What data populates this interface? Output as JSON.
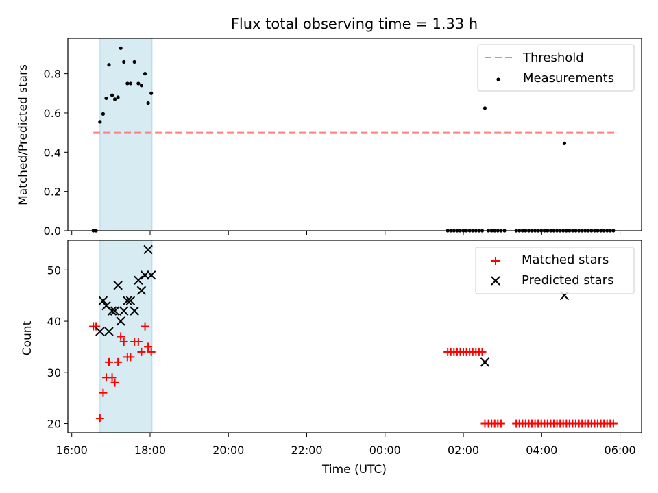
{
  "chart_data": {
    "title": "Flux total observing time = 1.33 h",
    "xlabel": "Time (UTC)",
    "x_tick_labels": [
      "16:00",
      "18:00",
      "20:00",
      "22:00",
      "00:00",
      "02:00",
      "04:00",
      "06:00"
    ],
    "x_range_hours": [
      15.9,
      30.55
    ],
    "x_ticks_hours": [
      16,
      18,
      20,
      22,
      24,
      26,
      28,
      30
    ],
    "shaded_span_hours": [
      16.72,
      18.05
    ],
    "span_color": "#add8e6",
    "panels": [
      {
        "type": "scatter",
        "ylabel": "Matched/Predicted stars",
        "ylim": [
          0,
          0.98
        ],
        "y_ticks": [
          0.0,
          0.2,
          0.4,
          0.6,
          0.8
        ],
        "y_tick_labels": [
          "0.0",
          "0.2",
          "0.4",
          "0.6",
          "0.8"
        ],
        "threshold": {
          "name": "Threshold",
          "value": 0.5,
          "x_range": [
            16.55,
            29.85
          ],
          "color": "#ff7f7f"
        },
        "series": [
          {
            "name": "Measurements",
            "marker": "dot",
            "color": "#000000",
            "x": [
              16.55,
              16.62,
              16.72,
              16.8,
              16.88,
              16.95,
              17.03,
              17.1,
              17.18,
              17.25,
              17.33,
              17.42,
              17.5,
              17.6,
              17.7,
              17.78,
              17.87,
              17.95,
              18.03,
              25.6,
              25.68,
              25.76,
              25.84,
              25.92,
              26.0,
              26.08,
              26.16,
              26.24,
              26.32,
              26.4,
              26.48,
              26.55,
              26.64,
              26.72,
              26.8,
              26.88,
              26.96,
              27.05,
              27.35,
              27.43,
              27.51,
              27.59,
              27.67,
              27.75,
              27.83,
              27.91,
              27.99,
              28.07,
              28.15,
              28.23,
              28.31,
              28.39,
              28.47,
              28.55,
              28.58,
              28.63,
              28.71,
              28.79,
              28.87,
              28.95,
              29.03,
              29.11,
              29.19,
              29.27,
              29.35,
              29.43,
              29.51,
              29.59,
              29.67,
              29.75,
              29.83
            ],
            "y": [
              0.0,
              0.0,
              0.555,
              0.595,
              0.675,
              0.845,
              0.69,
              0.67,
              0.68,
              0.93,
              0.86,
              0.75,
              0.75,
              0.86,
              0.75,
              0.74,
              0.8,
              0.65,
              0.7,
              0.0,
              0.0,
              0.0,
              0.0,
              0.0,
              0.0,
              0.0,
              0.0,
              0.0,
              0.0,
              0.0,
              0.0,
              0.625,
              0.0,
              0.0,
              0.0,
              0.0,
              0.0,
              0.0,
              0.0,
              0.0,
              0.0,
              0.0,
              0.0,
              0.0,
              0.0,
              0.0,
              0.0,
              0.0,
              0.0,
              0.0,
              0.0,
              0.0,
              0.0,
              0.0,
              0.445,
              0.0,
              0.0,
              0.0,
              0.0,
              0.0,
              0.0,
              0.0,
              0.0,
              0.0,
              0.0,
              0.0,
              0.0,
              0.0,
              0.0,
              0.0,
              0.0
            ]
          }
        ],
        "legend": {
          "position": "top-right",
          "entries": [
            "Threshold",
            "Measurements"
          ]
        }
      },
      {
        "type": "scatter",
        "ylabel": "Count",
        "ylim": [
          18.2,
          55.8
        ],
        "y_ticks": [
          20,
          30,
          40,
          50
        ],
        "y_tick_labels": [
          "20",
          "30",
          "40",
          "50"
        ],
        "series": [
          {
            "name": "Matched stars",
            "marker": "plus",
            "color": "#ff0000",
            "x": [
              16.55,
              16.62,
              16.72,
              16.8,
              16.88,
              16.95,
              17.03,
              17.1,
              17.18,
              17.25,
              17.33,
              17.42,
              17.5,
              17.6,
              17.7,
              17.78,
              17.87,
              17.95,
              18.03,
              25.6,
              25.68,
              25.76,
              25.84,
              25.92,
              26.0,
              26.08,
              26.16,
              26.24,
              26.32,
              26.4,
              26.48,
              26.55,
              26.64,
              26.72,
              26.8,
              26.88,
              26.96,
              27.35,
              27.43,
              27.51,
              27.59,
              27.67,
              27.75,
              27.83,
              27.91,
              27.99,
              28.07,
              28.15,
              28.23,
              28.31,
              28.39,
              28.47,
              28.55,
              28.63,
              28.71,
              28.79,
              28.87,
              28.95,
              29.03,
              29.11,
              29.19,
              29.27,
              29.35,
              29.43,
              29.51,
              29.59,
              29.67,
              29.75,
              29.83
            ],
            "y": [
              39,
              39,
              21,
              26,
              29,
              32,
              29,
              28,
              32,
              37,
              36,
              33,
              33,
              36,
              36,
              34,
              39,
              35,
              34,
              34,
              34,
              34,
              34,
              34,
              34,
              34,
              34,
              34,
              34,
              34,
              34,
              20,
              20,
              20,
              20,
              20,
              20,
              20,
              20,
              20,
              20,
              20,
              20,
              20,
              20,
              20,
              20,
              20,
              20,
              20,
              20,
              20,
              20,
              20,
              20,
              20,
              20,
              20,
              20,
              20,
              20,
              20,
              20,
              20,
              20,
              20,
              20,
              20,
              20
            ]
          },
          {
            "name": "Predicted stars",
            "marker": "x",
            "color": "#000000",
            "x": [
              16.72,
              16.8,
              16.88,
              16.95,
              17.03,
              17.1,
              17.18,
              17.25,
              17.33,
              17.42,
              17.5,
              17.6,
              17.7,
              17.78,
              17.87,
              17.95,
              18.03,
              26.55,
              28.58
            ],
            "y": [
              38,
              44,
              43,
              38,
              42,
              42,
              47,
              40,
              42,
              44,
              44,
              42,
              48,
              46,
              49,
              54,
              49,
              32,
              45
            ]
          }
        ],
        "legend": {
          "position": "top-right",
          "entries": [
            "Matched stars",
            "Predicted stars"
          ]
        }
      }
    ]
  }
}
